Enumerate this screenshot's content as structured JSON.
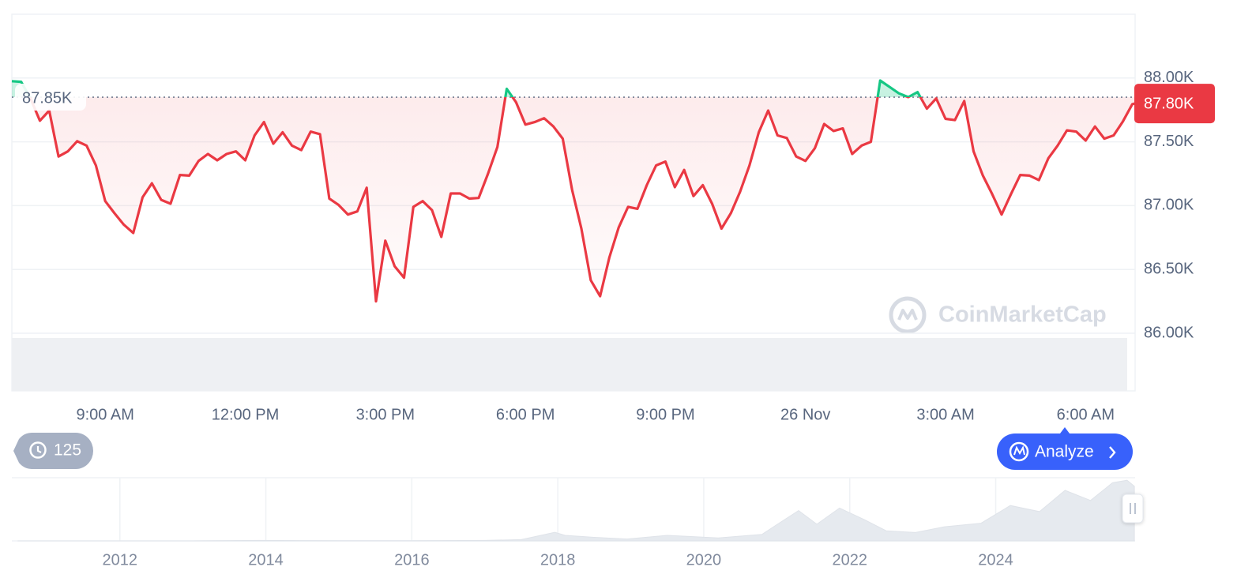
{
  "chart_data": [
    {
      "type": "line",
      "x": [
        7,
        7.2,
        7.4,
        7.6,
        7.8,
        8,
        8.2,
        8.4,
        8.6,
        8.8,
        9,
        9.2,
        9.4,
        9.6,
        9.8,
        10,
        10.2,
        10.4,
        10.6,
        10.8,
        11,
        11.2,
        11.4,
        11.6,
        11.8,
        12,
        12.2,
        12.4,
        12.6,
        12.8,
        13,
        13.2,
        13.4,
        13.6,
        13.8,
        14,
        14.2,
        14.4,
        14.6,
        14.8,
        15,
        15.2,
        15.4,
        15.6,
        15.8,
        16,
        16.2,
        16.4,
        16.6,
        16.8,
        17,
        17.2,
        17.4,
        17.6,
        17.8,
        18,
        18.2,
        18.4,
        18.6,
        18.8,
        19,
        19.2,
        19.4,
        19.6,
        19.8,
        20,
        20.2,
        20.4,
        20.6,
        20.8,
        21,
        21.2,
        21.4,
        21.6,
        21.8,
        22,
        22.2,
        22.4,
        22.6,
        22.8,
        23,
        23.2,
        23.4,
        23.6,
        23.8,
        24,
        24.2,
        24.4,
        24.6,
        24.8,
        25,
        25.2,
        25.4,
        25.6,
        25.8,
        26,
        26.2,
        26.4,
        26.6,
        26.8,
        27,
        27.2,
        27.4,
        27.6,
        27.8,
        28,
        28.2,
        28.4,
        28.6,
        28.8,
        29,
        29.2,
        29.4,
        29.6,
        29.8,
        30,
        30.2,
        30.4,
        30.6,
        30.8,
        31,
        31.06
      ],
      "values": [
        87975,
        87970,
        87840,
        87665,
        87745,
        87385,
        87425,
        87505,
        87470,
        87315,
        87035,
        86940,
        86850,
        86785,
        87065,
        87175,
        87045,
        87015,
        87240,
        87235,
        87350,
        87405,
        87355,
        87405,
        87425,
        87355,
        87550,
        87655,
        87485,
        87575,
        87470,
        87435,
        87580,
        87560,
        87055,
        87005,
        86930,
        86955,
        87140,
        86250,
        86725,
        86525,
        86435,
        86990,
        87035,
        86965,
        86755,
        87095,
        87095,
        87055,
        87060,
        87250,
        87460,
        87915,
        87810,
        87635,
        87655,
        87685,
        87620,
        87525,
        87125,
        86820,
        86415,
        86290,
        86595,
        86830,
        86990,
        86975,
        87160,
        87315,
        87345,
        87145,
        87280,
        87075,
        87160,
        87015,
        86820,
        86940,
        87110,
        87315,
        87575,
        87745,
        87550,
        87530,
        87385,
        87350,
        87450,
        87640,
        87585,
        87605,
        87405,
        87470,
        87500,
        87980,
        87930,
        87880,
        87850,
        87890,
        87760,
        87840,
        87680,
        87670,
        87820,
        87425,
        87235,
        87090,
        86930,
        87090,
        87240,
        87235,
        87200,
        87370,
        87470,
        87590,
        87580,
        87510,
        87620,
        87525,
        87550,
        87660,
        87795,
        87800
      ],
      "xlim": [
        7,
        31.06
      ],
      "xticks": [
        {
          "value": 9,
          "label": "9:00 AM"
        },
        {
          "value": 12,
          "label": "12:00 PM"
        },
        {
          "value": 15,
          "label": "3:00 PM"
        },
        {
          "value": 18,
          "label": "6:00 PM"
        },
        {
          "value": 21,
          "label": "9:00 PM"
        },
        {
          "value": 24,
          "label": "26 Nov"
        },
        {
          "value": 27,
          "label": "3:00 AM"
        },
        {
          "value": 30,
          "label": "6:00 AM"
        }
      ],
      "ylim": [
        86000,
        88500
      ],
      "yticks": [
        {
          "value": 86000,
          "label": "86.00K"
        },
        {
          "value": 86500,
          "label": "86.50K"
        },
        {
          "value": 87000,
          "label": "87.00K"
        },
        {
          "value": 87500,
          "label": "87.50K"
        },
        {
          "value": 88000,
          "label": "88.00K"
        }
      ],
      "ygrid": true,
      "baseline": {
        "value": 87850,
        "label": "87.85K"
      },
      "last_price": {
        "value": 87800,
        "label": "87.80K"
      },
      "up_color": "#16c784",
      "down_color": "#ea3943"
    },
    {
      "type": "area",
      "x": [
        2010.6,
        2011.45,
        2012,
        2013,
        2013.9,
        2014.5,
        2015,
        2016,
        2017,
        2017.5,
        2017.96,
        2018.1,
        2018.5,
        2018.95,
        2019.5,
        2020.2,
        2020.8,
        2021,
        2021.3,
        2021.55,
        2021.86,
        2022.2,
        2022.5,
        2022.9,
        2023.3,
        2023.8,
        2024.2,
        2024.6,
        2024.95,
        2025.3,
        2025.6,
        2025.8,
        2025.9
      ],
      "values": [
        0,
        30,
        5,
        15,
        900,
        600,
        250,
        400,
        1000,
        2500,
        17000,
        11000,
        7000,
        3800,
        11000,
        6000,
        13000,
        32000,
        60000,
        33000,
        65000,
        42000,
        20000,
        16500,
        28000,
        35000,
        70000,
        58000,
        100000,
        80000,
        115000,
        120000,
        108000
      ],
      "xlim": [
        2010.52,
        2025.91
      ],
      "xticks": [
        2012,
        2014,
        2016,
        2018,
        2020,
        2022,
        2024
      ],
      "ylim": [
        0,
        125000
      ],
      "xgrid": true,
      "color": "#e6eaef"
    }
  ],
  "ui": {
    "history_count": 125,
    "analyze_button": "Analyze",
    "watermark": "CoinMarketCap"
  }
}
